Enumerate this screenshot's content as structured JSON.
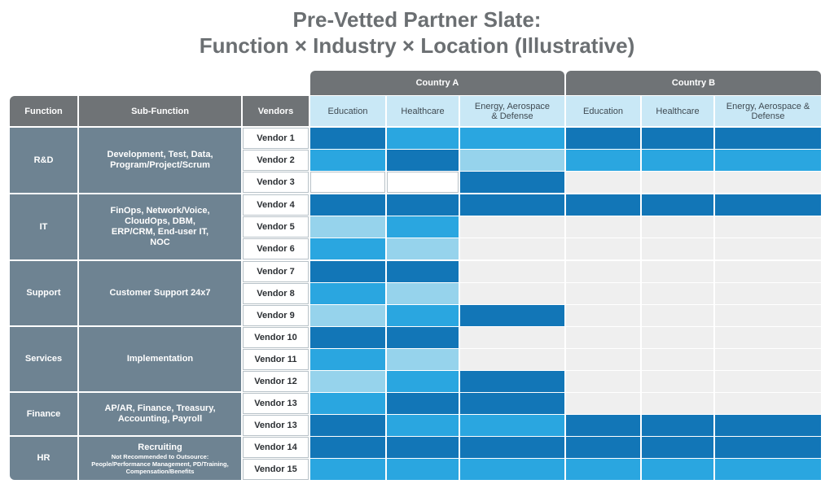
{
  "title": {
    "line1": "Pre-Vetted Partner Slate:",
    "line2": "Function × Industry × Location (Illustrative)"
  },
  "headers": {
    "function": "Function",
    "sub_function": "Sub-Function",
    "vendors": "Vendors",
    "country_a": "Country A",
    "country_b": "Country B",
    "columns": [
      "Education",
      "Healthcare",
      "Energy, Aerospace & Defense",
      "Education",
      "Healthcare",
      "Energy, Aerospace & Defense"
    ]
  },
  "groups": [
    {
      "function": "R&D",
      "sub_function": "Development, Test, Data, Program/Project/Scrum"
    },
    {
      "function": "IT",
      "sub_function": "FinOps, Network/Voice, CloudOps, DBM, ERP/CRM, End-user IT, NOC"
    },
    {
      "function": "Support",
      "sub_function": "Customer Support 24x7"
    },
    {
      "function": "Services",
      "sub_function": "Implementation"
    },
    {
      "function": "Finance",
      "sub_function": "AP/AR, Finance, Treasury, Accounting, Payroll"
    },
    {
      "function": "HR",
      "sub_function": "Recruiting",
      "sub_note": "Not Recommended to Outsource: People/Performance Management, PD/Training, Compensation/Benefits"
    }
  ],
  "rows": [
    {
      "vendor": "Vendor 1",
      "cells": [
        "dark",
        "med",
        "med",
        "dark",
        "dark",
        "dark"
      ]
    },
    {
      "vendor": "Vendor 2",
      "cells": [
        "med",
        "dark",
        "light",
        "med",
        "med",
        "med"
      ]
    },
    {
      "vendor": "Vendor 3",
      "cells": [
        "white",
        "white",
        "dark",
        "gray",
        "gray",
        "gray"
      ]
    },
    {
      "vendor": "Vendor 4",
      "cells": [
        "dark",
        "dark",
        "dark",
        "dark",
        "dark",
        "dark"
      ]
    },
    {
      "vendor": "Vendor 5",
      "cells": [
        "light",
        "med",
        "gray",
        "gray",
        "gray",
        "gray"
      ]
    },
    {
      "vendor": "Vendor 6",
      "cells": [
        "med",
        "light",
        "gray",
        "gray",
        "gray",
        "gray"
      ]
    },
    {
      "vendor": "Vendor 7",
      "cells": [
        "dark",
        "dark",
        "gray",
        "gray",
        "gray",
        "gray"
      ]
    },
    {
      "vendor": "Vendor 8",
      "cells": [
        "med",
        "light",
        "gray",
        "gray",
        "gray",
        "gray"
      ]
    },
    {
      "vendor": "Vendor 9",
      "cells": [
        "light",
        "med",
        "dark",
        "gray",
        "gray",
        "gray"
      ]
    },
    {
      "vendor": "Vendor 10",
      "cells": [
        "dark",
        "dark",
        "gray",
        "gray",
        "gray",
        "gray"
      ]
    },
    {
      "vendor": "Vendor 11",
      "cells": [
        "med",
        "light",
        "gray",
        "gray",
        "gray",
        "gray"
      ]
    },
    {
      "vendor": "Vendor 12",
      "cells": [
        "light",
        "med",
        "dark",
        "gray",
        "gray",
        "gray"
      ]
    },
    {
      "vendor": "Vendor 13",
      "cells": [
        "med",
        "dark",
        "dark",
        "gray",
        "gray",
        "gray"
      ]
    },
    {
      "vendor": "Vendor 13",
      "cells": [
        "dark",
        "med",
        "med",
        "dark",
        "dark",
        "dark"
      ]
    },
    {
      "vendor": "Vendor 14",
      "cells": [
        "dark",
        "dark",
        "dark",
        "dark",
        "dark",
        "dark"
      ]
    },
    {
      "vendor": "Vendor 15",
      "cells": [
        "med",
        "med",
        "med",
        "med",
        "med",
        "med"
      ]
    }
  ],
  "colors": {
    "dark": "#1276b7",
    "med": "#2aa6e0",
    "light": "#96d3ec",
    "white": "#ffffff",
    "gray": "#efefef",
    "header_gray": "#6f7376",
    "group_slate": "#6e8392",
    "header_blue": "#c9e8f6"
  }
}
